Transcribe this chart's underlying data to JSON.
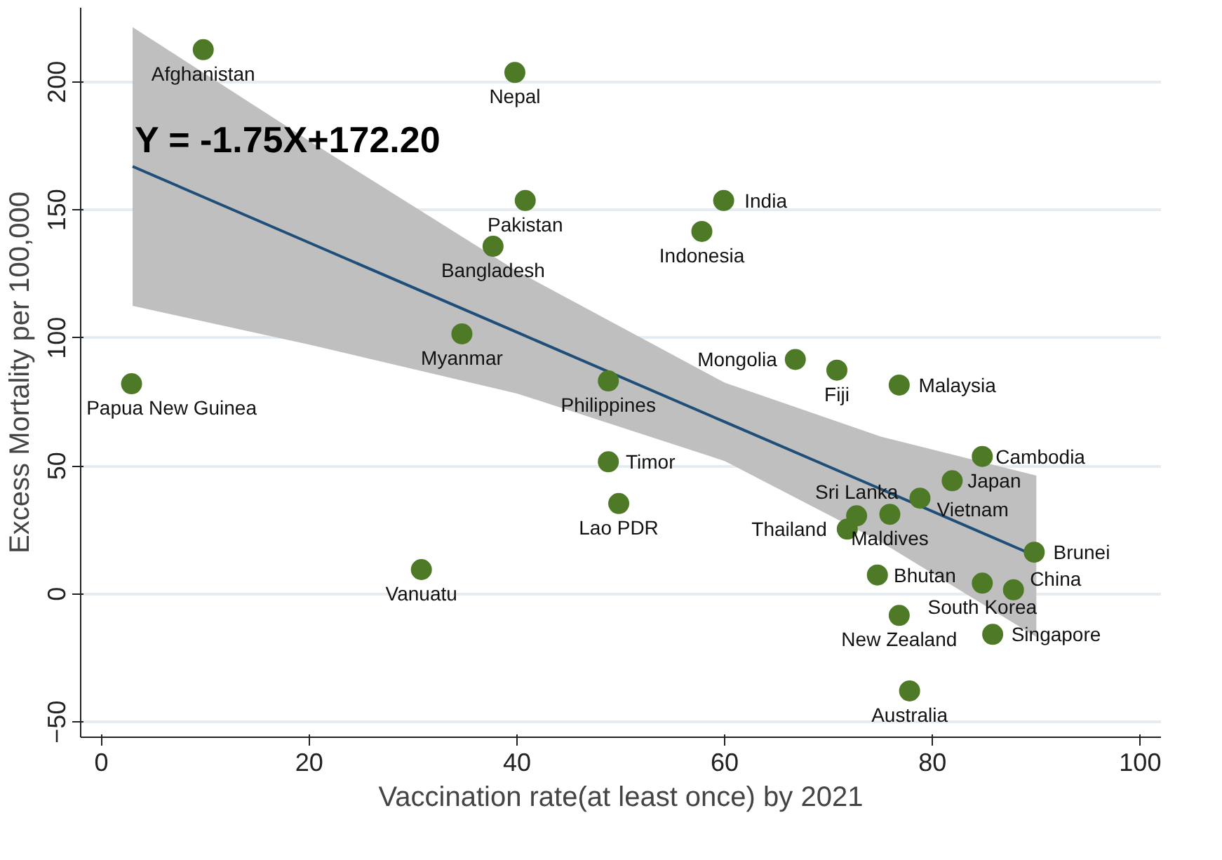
{
  "chart_data": {
    "type": "scatter",
    "xlabel": "Vaccination rate(at least once) by 2021",
    "ylabel": "Excess Mortality per 100,000",
    "xlim": [
      -2,
      102
    ],
    "ylim": [
      -56,
      229
    ],
    "xticks": [
      0,
      20,
      40,
      60,
      80,
      100
    ],
    "yticks": [
      -50,
      0,
      50,
      100,
      150,
      200
    ],
    "grid": "y",
    "series": [
      {
        "marker": "circle",
        "color": "#4e7a27",
        "x": [
          9.8,
          39.8,
          40.8,
          59.9,
          57.8,
          37.7,
          34.7,
          2.9,
          48.8,
          66.8,
          70.8,
          76.8,
          84.8,
          81.9,
          48.8,
          49.8,
          78.8,
          75.9,
          72.7,
          71.8,
          30.8,
          74.7,
          89.8,
          84.8,
          87.8,
          76.8,
          85.8,
          77.8
        ],
        "values": [
          212.6,
          203.7,
          153.7,
          153.7,
          141.6,
          135.8,
          101.6,
          82.1,
          83.2,
          91.6,
          87.4,
          81.6,
          53.7,
          44.2,
          51.6,
          35.3,
          37.4,
          31.1,
          30.5,
          25.3,
          9.5,
          7.4,
          16.3,
          4.2,
          1.6,
          -8.4,
          -15.8,
          -37.9
        ]
      },
      {
        "type": "line",
        "color": "#1f4e79",
        "line_style": "solid",
        "x": [
          3,
          20,
          40,
          60,
          75,
          90
        ],
        "values": [
          167.0,
          137.2,
          102.2,
          67.2,
          41.0,
          14.7
        ],
        "lower": [
          112.5,
          97.4,
          78.3,
          51.9,
          20.4,
          -16.8
        ],
        "upper": [
          221.4,
          177.0,
          126.1,
          82.5,
          61.5,
          46.2
        ]
      }
    ],
    "annotations": [
      "Y = -1.75X+172.20",
      {
        "text": "Afghanistan",
        "x": 9.8,
        "y": 212.6
      },
      {
        "text": "Nepal",
        "x": 39.8,
        "y": 203.7
      },
      {
        "text": "Pakistan",
        "x": 40.8,
        "y": 153.7
      },
      {
        "text": "India",
        "x": 59.9,
        "y": 153.7
      },
      {
        "text": "Indonesia",
        "x": 57.8,
        "y": 141.6
      },
      {
        "text": "Bangladesh",
        "x": 37.7,
        "y": 135.8
      },
      {
        "text": "Myanmar",
        "x": 34.7,
        "y": 101.6
      },
      {
        "text": "Papua New Guinea",
        "x": 2.9,
        "y": 82.1
      },
      {
        "text": "Philippines",
        "x": 48.8,
        "y": 83.2
      },
      {
        "text": "Mongolia",
        "x": 66.8,
        "y": 91.6
      },
      {
        "text": "Fiji",
        "x": 70.8,
        "y": 87.4
      },
      {
        "text": "Malaysia",
        "x": 76.8,
        "y": 81.6
      },
      {
        "text": "Cambodia",
        "x": 84.8,
        "y": 53.7
      },
      {
        "text": "Japan",
        "x": 81.9,
        "y": 44.2
      },
      {
        "text": "Timor",
        "x": 48.8,
        "y": 51.6
      },
      {
        "text": "Lao PDR",
        "x": 49.8,
        "y": 35.3
      },
      {
        "text": "Vietnam",
        "x": 78.8,
        "y": 37.4
      },
      {
        "text": "Maldives",
        "x": 75.9,
        "y": 31.1
      },
      {
        "text": "Sri Lanka",
        "x": 72.7,
        "y": 30.5
      },
      {
        "text": "Thailand",
        "x": 71.8,
        "y": 25.3
      },
      {
        "text": "Vanuatu",
        "x": 30.8,
        "y": 9.5
      },
      {
        "text": "Bhutan",
        "x": 74.7,
        "y": 7.4
      },
      {
        "text": "Brunei",
        "x": 89.8,
        "y": 16.3
      },
      {
        "text": "South Korea",
        "x": 84.8,
        "y": 4.2
      },
      {
        "text": "China",
        "x": 87.8,
        "y": 1.6
      },
      {
        "text": "New Zealand",
        "x": 76.8,
        "y": -8.4
      },
      {
        "text": "Singapore",
        "x": 85.8,
        "y": -15.8
      },
      {
        "text": "Australia",
        "x": 77.8,
        "y": -37.9
      }
    ]
  }
}
